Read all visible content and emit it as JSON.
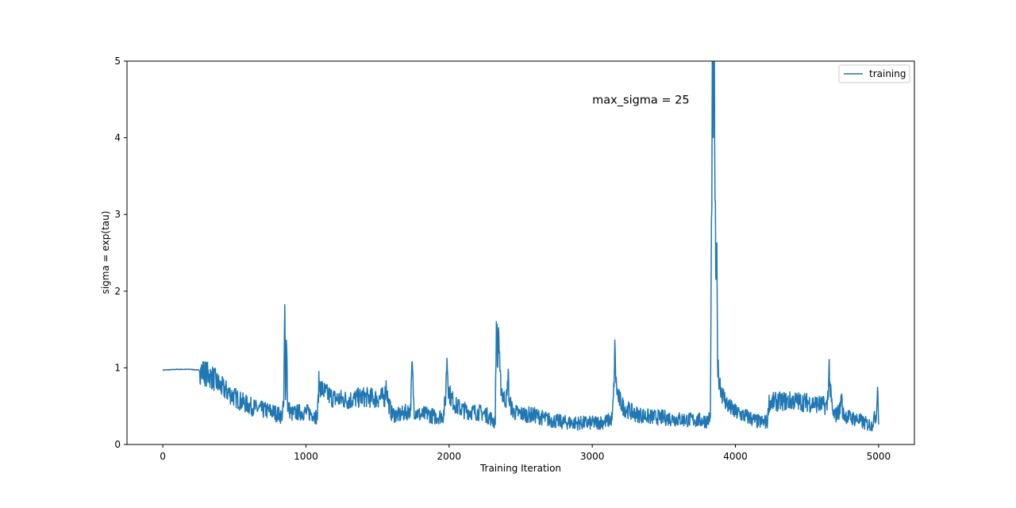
{
  "chart_data": {
    "type": "line",
    "title": "",
    "xlabel": "Training Iteration",
    "ylabel": "sigma = exp(tau)",
    "xlim": [
      -250,
      5250
    ],
    "ylim": [
      0,
      5
    ],
    "xticks": [
      0,
      1000,
      2000,
      3000,
      4000,
      5000
    ],
    "xtick_labels": [
      "0",
      "1000",
      "2000",
      "3000",
      "4000",
      "5000"
    ],
    "yticks": [
      0,
      1,
      2,
      3,
      4,
      5
    ],
    "ytick_labels": [
      "0",
      "1",
      "2",
      "3",
      "4",
      "5"
    ],
    "grid": false,
    "legend_position": "top-right",
    "annotation": {
      "text": "max_sigma = 25",
      "x": 3000,
      "y": 4.5
    },
    "series": [
      {
        "name": "training",
        "color": "#1f77b4",
        "noise": 0.06,
        "anchors": [
          [
            0,
            0.97
          ],
          [
            100,
            0.98
          ],
          [
            200,
            0.98
          ],
          [
            250,
            0.97
          ],
          [
            300,
            0.93
          ],
          [
            350,
            0.87
          ],
          [
            400,
            0.76
          ],
          [
            450,
            0.69
          ],
          [
            500,
            0.62
          ],
          [
            550,
            0.56
          ],
          [
            600,
            0.51
          ],
          [
            650,
            0.47
          ],
          [
            700,
            0.45
          ],
          [
            760,
            0.43
          ],
          [
            800,
            0.4
          ],
          [
            830,
            0.37
          ],
          [
            845,
            0.5
          ],
          [
            852,
            1.8
          ],
          [
            858,
            0.6
          ],
          [
            864,
            1.55
          ],
          [
            872,
            0.5
          ],
          [
            900,
            0.4
          ],
          [
            950,
            0.42
          ],
          [
            1000,
            0.42
          ],
          [
            1050,
            0.4
          ],
          [
            1080,
            0.35
          ],
          [
            1090,
            0.8
          ],
          [
            1110,
            0.72
          ],
          [
            1150,
            0.65
          ],
          [
            1200,
            0.6
          ],
          [
            1300,
            0.58
          ],
          [
            1400,
            0.62
          ],
          [
            1500,
            0.6
          ],
          [
            1550,
            0.62
          ],
          [
            1560,
            0.78
          ],
          [
            1575,
            0.55
          ],
          [
            1600,
            0.4
          ],
          [
            1650,
            0.38
          ],
          [
            1700,
            0.42
          ],
          [
            1730,
            0.45
          ],
          [
            1742,
            1.04
          ],
          [
            1755,
            0.45
          ],
          [
            1800,
            0.38
          ],
          [
            1850,
            0.4
          ],
          [
            1900,
            0.36
          ],
          [
            1960,
            0.38
          ],
          [
            1975,
            0.6
          ],
          [
            1985,
            1.15
          ],
          [
            1995,
            0.75
          ],
          [
            2010,
            0.62
          ],
          [
            2050,
            0.5
          ],
          [
            2100,
            0.45
          ],
          [
            2150,
            0.43
          ],
          [
            2200,
            0.42
          ],
          [
            2250,
            0.4
          ],
          [
            2300,
            0.33
          ],
          [
            2322,
            0.28
          ],
          [
            2332,
            1.87
          ],
          [
            2338,
            0.9
          ],
          [
            2345,
            1.6
          ],
          [
            2355,
            0.85
          ],
          [
            2380,
            0.6
          ],
          [
            2405,
            0.6
          ],
          [
            2412,
            0.97
          ],
          [
            2420,
            0.55
          ],
          [
            2450,
            0.42
          ],
          [
            2500,
            0.4
          ],
          [
            2600,
            0.38
          ],
          [
            2700,
            0.32
          ],
          [
            2800,
            0.29
          ],
          [
            2900,
            0.28
          ],
          [
            3000,
            0.28
          ],
          [
            3100,
            0.3
          ],
          [
            3140,
            0.34
          ],
          [
            3150,
            0.7
          ],
          [
            3158,
            1.25
          ],
          [
            3166,
            0.8
          ],
          [
            3180,
            0.62
          ],
          [
            3220,
            0.48
          ],
          [
            3300,
            0.4
          ],
          [
            3400,
            0.36
          ],
          [
            3500,
            0.35
          ],
          [
            3600,
            0.33
          ],
          [
            3700,
            0.32
          ],
          [
            3800,
            0.31
          ],
          [
            3825,
            0.35
          ],
          [
            3835,
            3.5
          ],
          [
            3840,
            5.3
          ],
          [
            3846,
            4.2
          ],
          [
            3852,
            5.0
          ],
          [
            3858,
            3.2
          ],
          [
            3864,
            2.0
          ],
          [
            3870,
            2.4
          ],
          [
            3876,
            1.0
          ],
          [
            3890,
            0.82
          ],
          [
            3910,
            0.65
          ],
          [
            3950,
            0.5
          ],
          [
            4000,
            0.42
          ],
          [
            4100,
            0.35
          ],
          [
            4150,
            0.3
          ],
          [
            4200,
            0.29
          ],
          [
            4225,
            0.3
          ],
          [
            4232,
            0.55
          ],
          [
            4300,
            0.56
          ],
          [
            4400,
            0.57
          ],
          [
            4500,
            0.55
          ],
          [
            4600,
            0.52
          ],
          [
            4640,
            0.5
          ],
          [
            4650,
            0.8
          ],
          [
            4655,
            1.01
          ],
          [
            4662,
            0.7
          ],
          [
            4680,
            0.4
          ],
          [
            4700,
            0.38
          ],
          [
            4730,
            0.45
          ],
          [
            4740,
            0.65
          ],
          [
            4750,
            0.4
          ],
          [
            4800,
            0.35
          ],
          [
            4850,
            0.33
          ],
          [
            4900,
            0.28
          ],
          [
            4950,
            0.25
          ],
          [
            4985,
            0.4
          ],
          [
            4990,
            0.75
          ],
          [
            4995,
            0.7
          ],
          [
            5000,
            0.3
          ]
        ]
      }
    ]
  }
}
